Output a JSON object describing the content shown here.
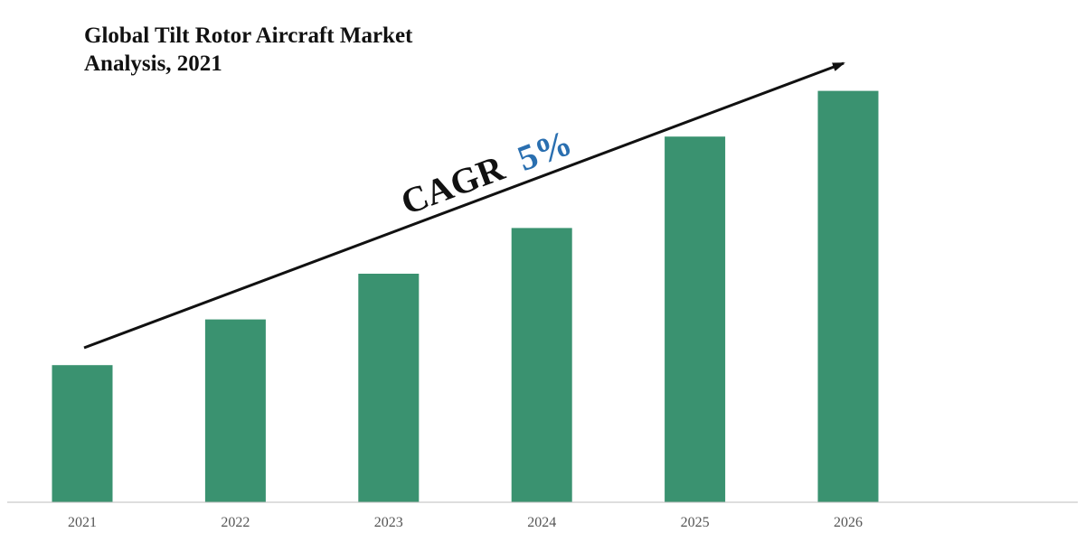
{
  "chart_data": {
    "type": "bar",
    "title_line1": "Global Tilt Rotor Aircraft Market",
    "title_line2": "Analysis, 2021",
    "categories": [
      "2021",
      "2022",
      "2023",
      "2024",
      "2025",
      "2026"
    ],
    "values": [
      30,
      40,
      50,
      60,
      80,
      90
    ],
    "ylim": [
      0,
      100
    ],
    "grid": false,
    "legend": "none",
    "annotation": {
      "prefix": "CAGR",
      "value": "5%"
    },
    "colors": {
      "bar": "#3a9270",
      "arrow": "#111111",
      "cagr_text": "#111111",
      "cagr_value": "#2a6fb0",
      "axis": "#bdbdbd",
      "tick_label": "#555555"
    }
  }
}
